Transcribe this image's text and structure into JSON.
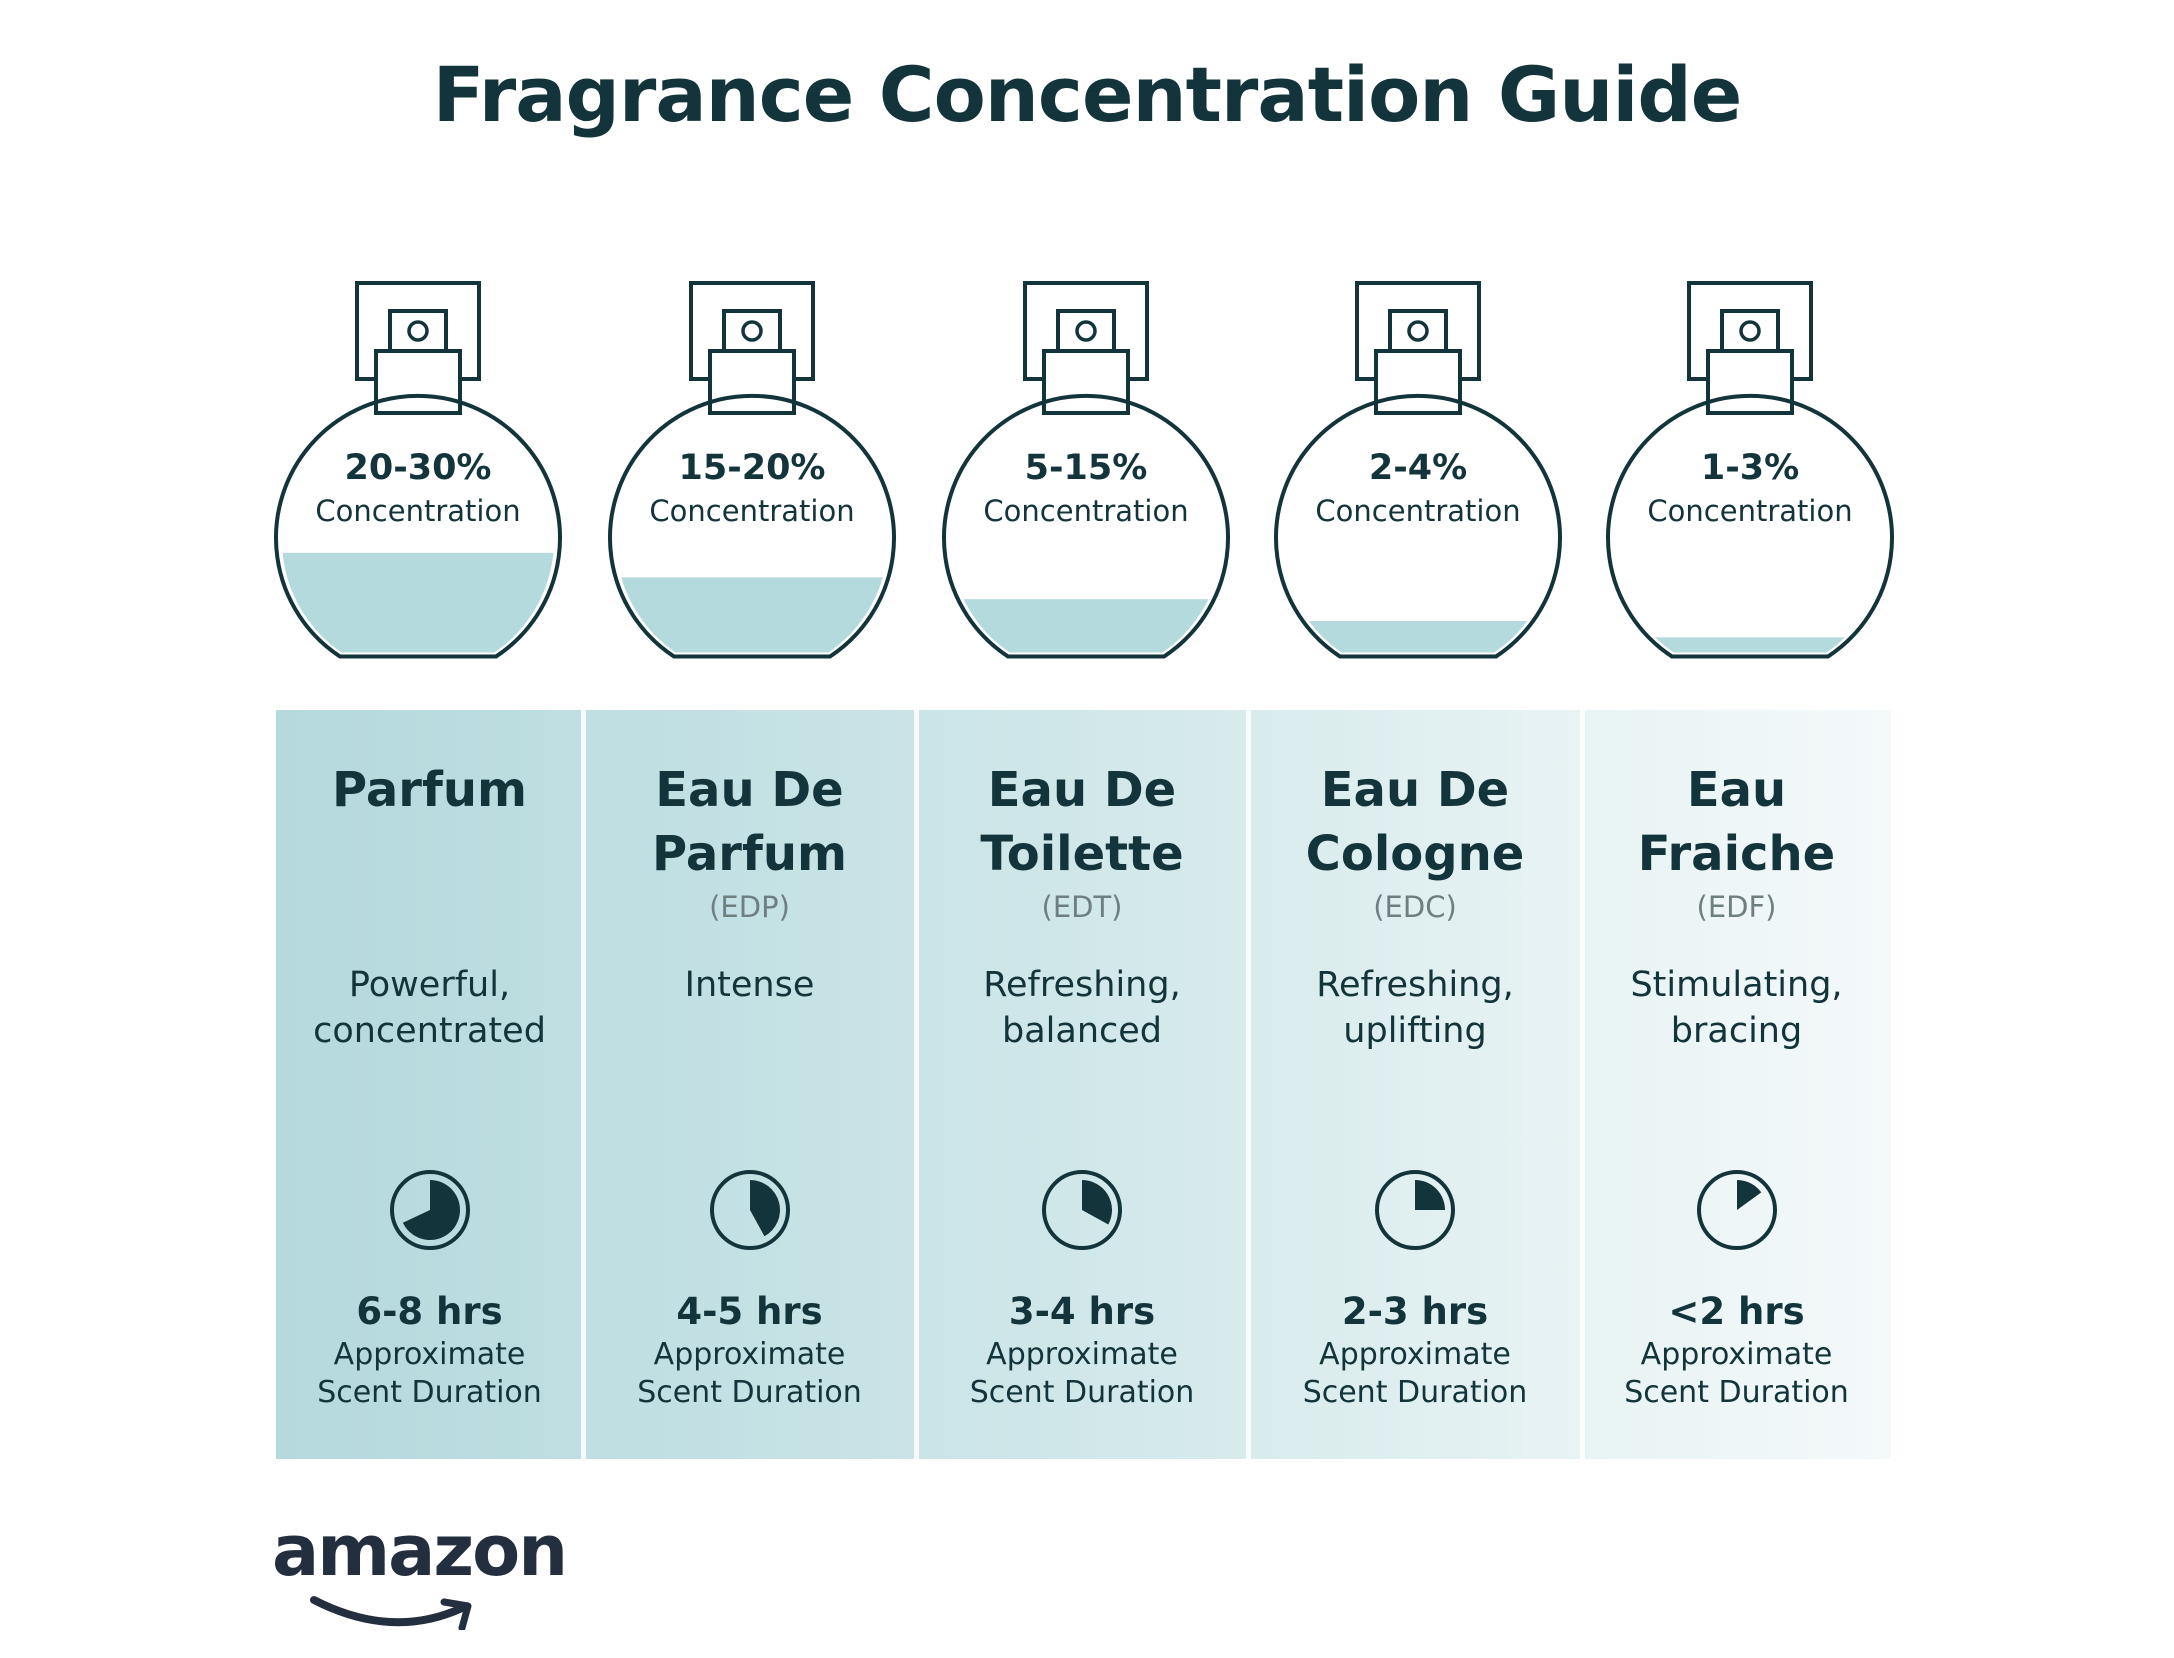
{
  "title": "Fragrance Concentration Guide",
  "colors": {
    "ink": "#13343a",
    "fill": "#b5dadd",
    "muted": "#6e7f82"
  },
  "fragrances": [
    {
      "concentration": "20-30%",
      "concentration_label": "Concentration",
      "fill_level": 0.38,
      "name_line1": "Parfum",
      "name_line2": "",
      "abbreviation": "",
      "desc_line1": "Powerful,",
      "desc_line2": "concentrated",
      "clock_icon": "clock-icon",
      "duration_fraction": 0.68,
      "duration": "6-8 hrs",
      "duration_label_line1": "Approximate",
      "duration_label_line2": "Scent Duration"
    },
    {
      "concentration": "15-20%",
      "concentration_label": "Concentration",
      "fill_level": 0.29,
      "name_line1": "Eau De",
      "name_line2": "Parfum",
      "abbreviation": "(EDP)",
      "desc_line1": "Intense",
      "desc_line2": "",
      "clock_icon": "clock-icon",
      "duration_fraction": 0.42,
      "duration": "4-5 hrs",
      "duration_label_line1": "Approximate",
      "duration_label_line2": "Scent Duration"
    },
    {
      "concentration": "5-15%",
      "concentration_label": "Concentration",
      "fill_level": 0.21,
      "name_line1": "Eau De",
      "name_line2": "Toilette",
      "abbreviation": "(EDT)",
      "desc_line1": "Refreshing,",
      "desc_line2": "balanced",
      "clock_icon": "clock-icon",
      "duration_fraction": 0.33,
      "duration": "3-4 hrs",
      "duration_label_line1": "Approximate",
      "duration_label_line2": "Scent Duration"
    },
    {
      "concentration": "2-4%",
      "concentration_label": "Concentration",
      "fill_level": 0.13,
      "name_line1": "Eau De",
      "name_line2": "Cologne",
      "abbreviation": "(EDC)",
      "desc_line1": "Refreshing,",
      "desc_line2": "uplifting",
      "clock_icon": "clock-icon",
      "duration_fraction": 0.25,
      "duration": "2-3 hrs",
      "duration_label_line1": "Approximate",
      "duration_label_line2": "Scent Duration"
    },
    {
      "concentration": "1-3%",
      "concentration_label": "Concentration",
      "fill_level": 0.07,
      "name_line1": "Eau",
      "name_line2": "Fraiche",
      "abbreviation": "(EDF)",
      "desc_line1": "Stimulating,",
      "desc_line2": "bracing",
      "clock_icon": "clock-icon",
      "duration_fraction": 0.15,
      "duration": "<2 hrs",
      "duration_label_line1": "Approximate",
      "duration_label_line2": "Scent Duration"
    }
  ],
  "logo": {
    "text": "amazon"
  }
}
